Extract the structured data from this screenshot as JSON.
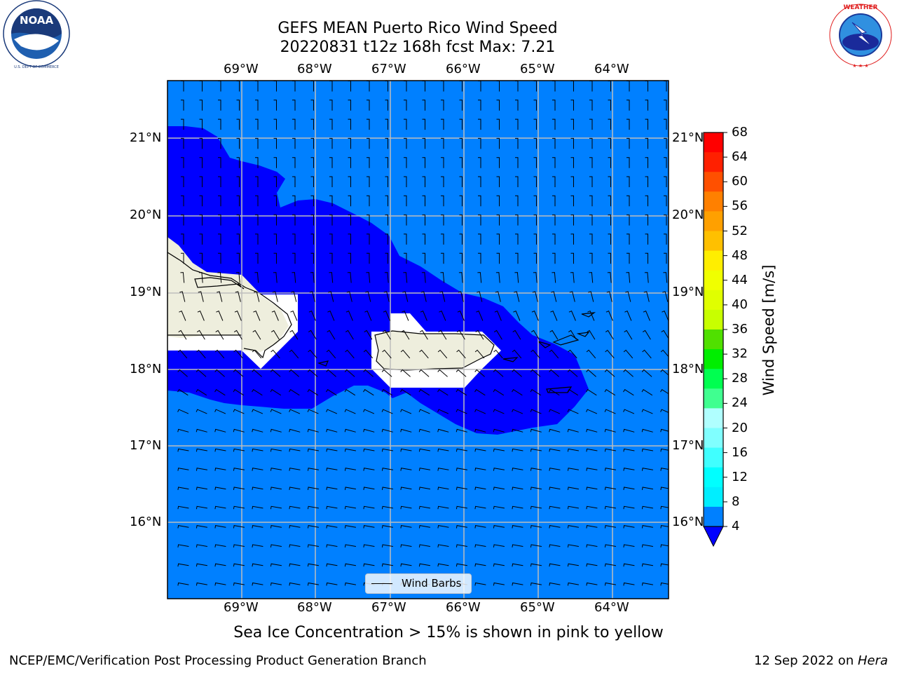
{
  "header": {
    "title_line1": "GEFS MEAN Puerto Rico Wind Speed",
    "title_line2": "20220831 t12z 168h fcst   Max: 7.21"
  },
  "map": {
    "lon_labels": [
      "69°W",
      "68°W",
      "67°W",
      "66°W",
      "65°W",
      "64°W"
    ],
    "lat_labels": [
      "21°N",
      "20°N",
      "19°N",
      "18°N",
      "17°N",
      "16°N"
    ],
    "land_color": "#eeeedd",
    "low_wind_color": "#0000ff",
    "background_wind_color": "#0080ff",
    "legend": {
      "label": "Wind Barbs"
    }
  },
  "colorbar": {
    "label": "Wind Speed [m/s]",
    "ticks": [
      "68",
      "64",
      "60",
      "56",
      "52",
      "48",
      "44",
      "40",
      "36",
      "32",
      "28",
      "24",
      "20",
      "16",
      "12",
      "8",
      "4"
    ],
    "colors_top_to_bottom": [
      "#ff0000",
      "#ff2000",
      "#ff5000",
      "#ff8000",
      "#ffa000",
      "#ffc000",
      "#ffee00",
      "#f0ff00",
      "#e0ff00",
      "#c8ff00",
      "#50e000",
      "#00ee00",
      "#00ff50",
      "#40ff90",
      "#b0ffff",
      "#80ffff",
      "#40ffff",
      "#00ffff",
      "#00eeff",
      "#0080ff"
    ],
    "extend_color": "#0000ff"
  },
  "logos": {
    "noaa_text": "NOAA",
    "noaa_ring_text": "NATIONAL OCEANIC AND ATMOSPHERIC ADMINISTRATION · U.S. DEPARTMENT OF COMMERCE",
    "nws_ring_text": "NATIONAL WEATHER SERVICE"
  },
  "caption": "Sea Ice Concentration > 15% is shown in pink to yellow",
  "footer": {
    "left": "NCEP/EMC/Verification Post Processing Product Generation Branch",
    "right_date": "12 Sep 2022 on ",
    "right_machine": "Hera"
  }
}
